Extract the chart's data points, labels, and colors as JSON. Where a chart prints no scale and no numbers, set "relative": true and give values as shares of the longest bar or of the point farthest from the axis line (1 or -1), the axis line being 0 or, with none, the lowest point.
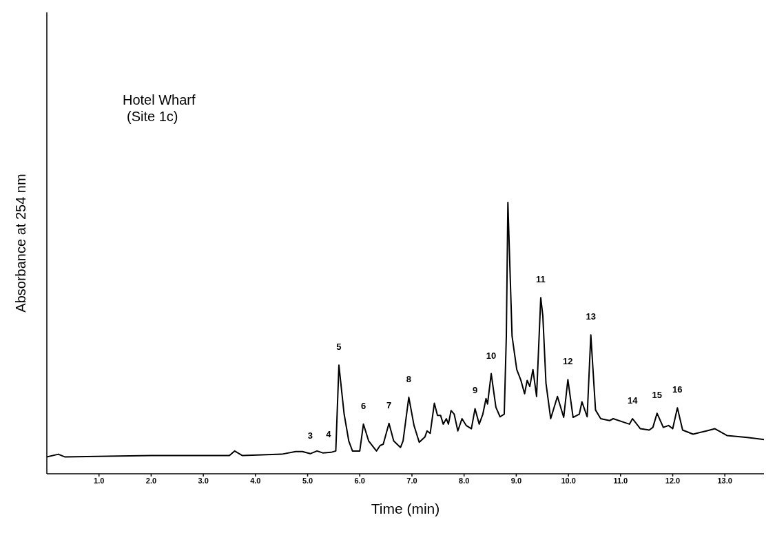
{
  "chart_data": {
    "type": "line",
    "title": "Hotel Wharf\n(Site 1c)",
    "xlabel": "Time  (min)",
    "ylabel": "Absorbance at  254 nm",
    "relative": true,
    "grid": false,
    "legend": false,
    "marker": "none",
    "line_style": "solid",
    "xlim": [
      0,
      13.75
    ],
    "xticks": [
      {
        "value": 1,
        "label": "1.0"
      },
      {
        "value": 2,
        "label": "2.0"
      },
      {
        "value": 3,
        "label": "3.0"
      },
      {
        "value": 4,
        "label": "4.0"
      },
      {
        "value": 5,
        "label": "5.0"
      },
      {
        "value": 6,
        "label": "6.0"
      },
      {
        "value": 7,
        "label": "7.0"
      },
      {
        "value": 8,
        "label": "8.0"
      },
      {
        "value": 9,
        "label": "9.0"
      },
      {
        "value": 10,
        "label": "10.0"
      },
      {
        "value": 11,
        "label": "11.0"
      },
      {
        "value": 12,
        "label": "12.0"
      },
      {
        "value": 13,
        "label": "13.0"
      }
    ],
    "series": [
      {
        "color": "#000000",
        "x": [
          0,
          0.22,
          0.35,
          2.0,
          3.5,
          3.6,
          3.75,
          4.5,
          4.77,
          4.9,
          5.05,
          5.18,
          5.29,
          5.45,
          5.54,
          5.6,
          5.7,
          5.79,
          5.86,
          6.0,
          6.07,
          6.17,
          6.32,
          6.39,
          6.45,
          6.56,
          6.65,
          6.78,
          6.83,
          6.94,
          7.04,
          7.14,
          7.25,
          7.29,
          7.35,
          7.43,
          7.49,
          7.55,
          7.6,
          7.66,
          7.7,
          7.75,
          7.81,
          7.88,
          7.96,
          8.04,
          8.14,
          8.21,
          8.29,
          8.36,
          8.42,
          8.45,
          8.52,
          8.61,
          8.69,
          8.77,
          8.81,
          8.84,
          8.87,
          8.92,
          9.01,
          9.09,
          9.16,
          9.21,
          9.26,
          9.32,
          9.39,
          9.47,
          9.51,
          9.57,
          9.66,
          9.79,
          9.91,
          9.99,
          10.09,
          10.21,
          10.26,
          10.36,
          10.43,
          10.52,
          10.62,
          10.79,
          10.86,
          11.06,
          11.17,
          11.23,
          11.38,
          11.55,
          11.62,
          11.7,
          11.82,
          11.92,
          12.0,
          12.09,
          12.19,
          12.39,
          12.65,
          12.81,
          13.04,
          13.43,
          13.75
        ],
        "values": [
          0.062,
          0.072,
          0.062,
          0.067,
          0.067,
          0.084,
          0.067,
          0.072,
          0.082,
          0.082,
          0.074,
          0.084,
          0.077,
          0.079,
          0.084,
          0.4,
          0.22,
          0.12,
          0.084,
          0.084,
          0.183,
          0.121,
          0.084,
          0.104,
          0.109,
          0.186,
          0.121,
          0.097,
          0.121,
          0.282,
          0.178,
          0.116,
          0.136,
          0.158,
          0.149,
          0.26,
          0.215,
          0.215,
          0.183,
          0.203,
          0.183,
          0.233,
          0.22,
          0.158,
          0.203,
          0.178,
          0.166,
          0.24,
          0.183,
          0.22,
          0.277,
          0.257,
          0.369,
          0.245,
          0.21,
          0.22,
          0.507,
          1.0,
          0.814,
          0.507,
          0.384,
          0.344,
          0.295,
          0.344,
          0.322,
          0.384,
          0.285,
          0.649,
          0.582,
          0.334,
          0.203,
          0.285,
          0.208,
          0.347,
          0.208,
          0.22,
          0.265,
          0.21,
          0.512,
          0.235,
          0.203,
          0.196,
          0.203,
          0.19,
          0.183,
          0.203,
          0.166,
          0.161,
          0.171,
          0.223,
          0.171,
          0.178,
          0.166,
          0.243,
          0.161,
          0.146,
          0.158,
          0.166,
          0.141,
          0.134,
          0.126
        ]
      }
    ],
    "annotations": [
      {
        "text": "3",
        "x": 5.05,
        "y": 0.074
      },
      {
        "text": "4",
        "x": 5.4,
        "y": 0.079
      },
      {
        "text": "5",
        "x": 5.6,
        "y": 0.4
      },
      {
        "text": "6",
        "x": 6.07,
        "y": 0.183
      },
      {
        "text": "7",
        "x": 6.56,
        "y": 0.186
      },
      {
        "text": "8",
        "x": 6.94,
        "y": 0.282
      },
      {
        "text": "9",
        "x": 8.21,
        "y": 0.24
      },
      {
        "text": "10",
        "x": 8.52,
        "y": 0.369
      },
      {
        "text": "11",
        "x": 9.47,
        "y": 0.649
      },
      {
        "text": "12",
        "x": 9.99,
        "y": 0.347
      },
      {
        "text": "13",
        "x": 10.43,
        "y": 0.512
      },
      {
        "text": "14",
        "x": 11.23,
        "y": 0.203
      },
      {
        "text": "15",
        "x": 11.7,
        "y": 0.223
      },
      {
        "text": "16",
        "x": 12.09,
        "y": 0.243
      }
    ]
  }
}
